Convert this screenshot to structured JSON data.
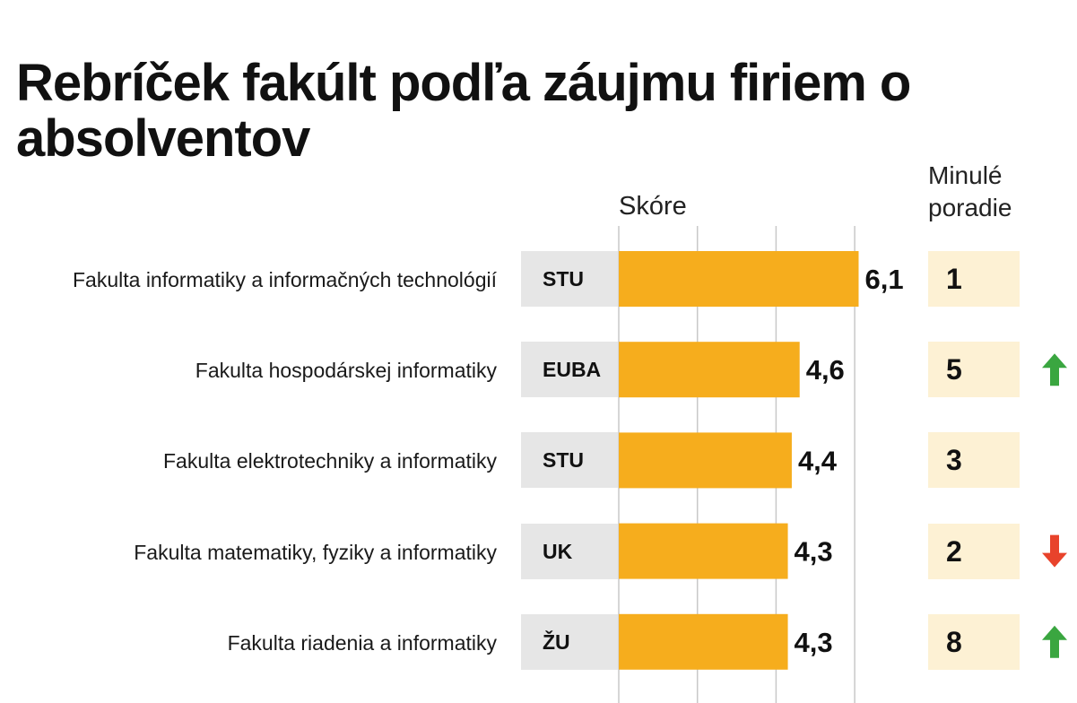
{
  "title": "Rebríček fakúlt podľa záujmu firiem o absolventov",
  "headers": {
    "score": "Skóre",
    "previous_rank": "Minulé poradie"
  },
  "colors": {
    "bar": "#f6ad1d",
    "uni_bg": "#e6e6e6",
    "rank_bg": "#fdf1d4",
    "grid": "#c8c8c8",
    "arrow_up": "#3aa640",
    "arrow_down": "#e8432b"
  },
  "rows": [
    {
      "faculty": "Fakulta informatiky a informačných technológií",
      "university": "STU",
      "score_label": "6,1",
      "previous_rank": "1",
      "trend": "none"
    },
    {
      "faculty": "Fakulta hospodárskej informatiky",
      "university": "EUBA",
      "score_label": "4,6",
      "previous_rank": "5",
      "trend": "up"
    },
    {
      "faculty": "Fakulta elektrotechniky a informatiky",
      "university": "STU",
      "score_label": "4,4",
      "previous_rank": "3",
      "trend": "none"
    },
    {
      "faculty": "Fakulta matematiky, fyziky a informatiky",
      "university": "UK",
      "score_label": "4,3",
      "previous_rank": "2",
      "trend": "down"
    },
    {
      "faculty": "Fakulta riadenia a informatiky",
      "university": "ŽU",
      "score_label": "4,3",
      "previous_rank": "8",
      "trend": "up"
    }
  ],
  "chart_data": {
    "type": "bar",
    "orientation": "horizontal",
    "title": "Rebríček fakúlt podľa záujmu firiem o absolventov",
    "xlabel": "Skóre",
    "ylabel": "",
    "categories": [
      "Fakulta informatiky a informačných technológií",
      "Fakulta hospodárskej informatiky",
      "Fakulta elektrotechniky a informatiky",
      "Fakulta matematiky, fyziky a informatiky",
      "Fakulta riadenia a informatiky"
    ],
    "values": [
      6.1,
      4.6,
      4.4,
      4.3,
      4.3
    ],
    "xlim": [
      0,
      6
    ],
    "grid": true
  }
}
